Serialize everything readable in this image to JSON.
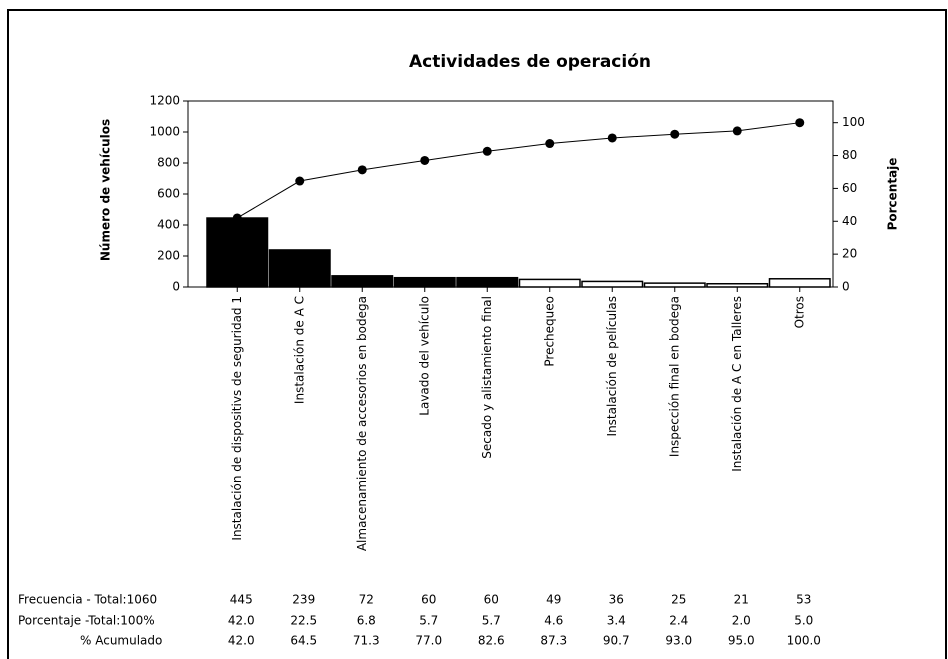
{
  "chart_data": {
    "type": "pareto",
    "title": "Actividades de operación",
    "ylabel": "Número de vehículos",
    "y2label": "Porcentaje",
    "categories": [
      "Instalación de dispositivs de seguridad 1",
      "Instalación de A C",
      "Almacenamiento de accesorios en bodega",
      "Lavado del vehículo",
      "Secado y alistamiento final",
      "Prechequeo",
      "Instalación de películas",
      "Inspección final en bodega",
      "Instalación de A C en Talleres",
      "Otros"
    ],
    "series": [
      {
        "name": "Frecuencia - Total:1060",
        "color": "#000000",
        "colors": [
          "#000000",
          "#000000",
          "#000000",
          "#000000",
          "#000000",
          "#ffffff",
          "#ffffff",
          "#ffffff",
          "#ffffff",
          "#ffffff"
        ],
        "values": [
          445,
          239,
          72,
          60,
          60,
          49,
          36,
          25,
          21,
          53
        ]
      },
      {
        "name": "Porcentaje -Total:100%",
        "values": [
          42,
          22.5,
          6.8,
          5.7,
          5.7,
          4.6,
          3.4,
          2.4,
          2,
          5
        ],
        "value_labels": [
          "42.0",
          "22.5",
          "6.8",
          "5.7",
          "5.7",
          "4.6",
          "3.4",
          "2.4",
          "2.0",
          "5.0"
        ]
      },
      {
        "name": "% Acumulado",
        "color": "#000000",
        "axis": "y2",
        "values": [
          42,
          64.5,
          71.3,
          77,
          82.6,
          87.3,
          90.7,
          93,
          95,
          100
        ],
        "value_labels": [
          "42.0",
          "64.5",
          "71.3",
          "77.0",
          "82.6",
          "87.3",
          "90.7",
          "93.0",
          "95.0",
          "100.0"
        ]
      }
    ],
    "ylim": [
      0,
      1200
    ],
    "yticks": [
      0,
      200,
      400,
      600,
      800,
      1000,
      1200
    ],
    "y2lim": [
      0,
      113.2
    ],
    "y2ticks": [
      0,
      20,
      40,
      60,
      80,
      100
    ]
  }
}
